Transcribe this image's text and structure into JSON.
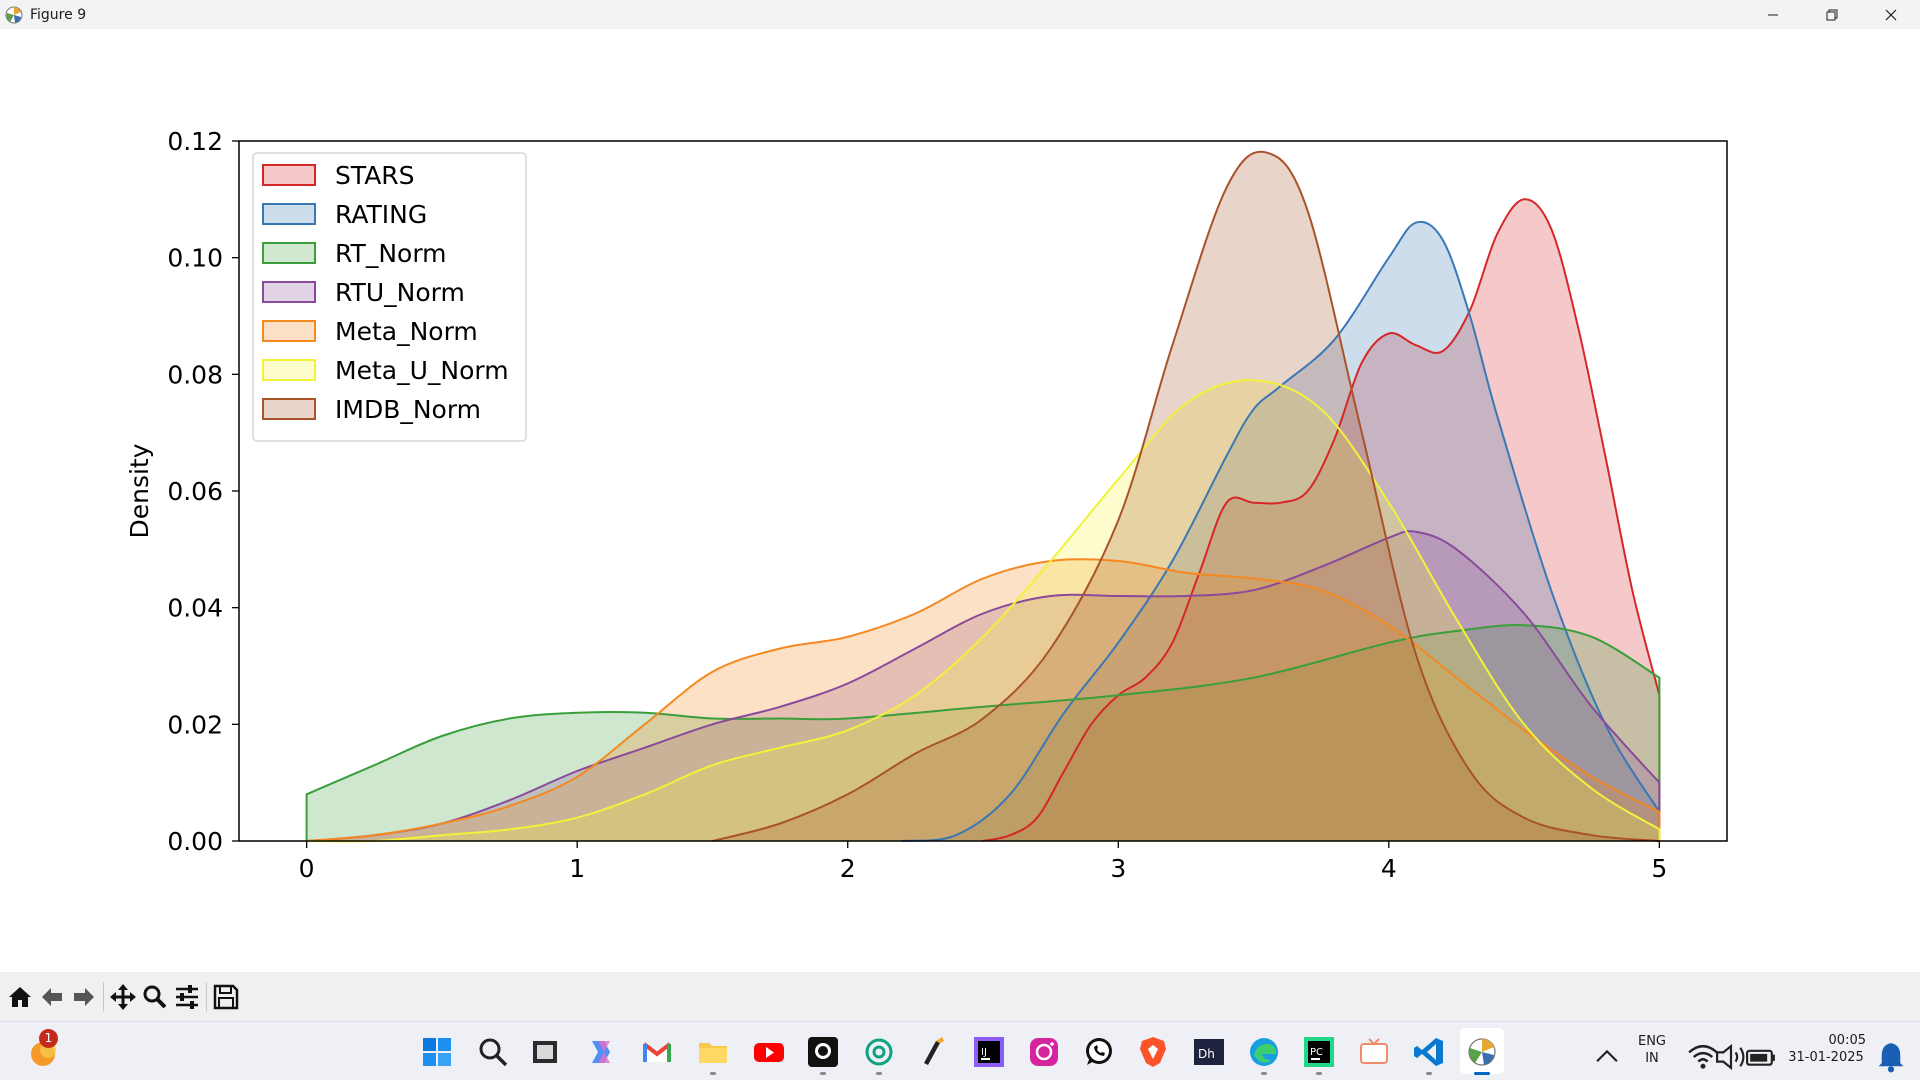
{
  "window": {
    "title": "Figure 9"
  },
  "chart_data": {
    "type": "area",
    "subtype": "kde",
    "title": "",
    "xlabel": "",
    "ylabel": "Density",
    "xlim": [
      -0.25,
      5.25
    ],
    "ylim": [
      0,
      0.12
    ],
    "xticks": [
      0,
      1,
      2,
      3,
      4,
      5
    ],
    "yticks": [
      0.0,
      0.02,
      0.04,
      0.06,
      0.08,
      0.1,
      0.12
    ],
    "xtick_labels": [
      "0",
      "1",
      "2",
      "3",
      "4",
      "5"
    ],
    "ytick_labels": [
      "0.00",
      "0.02",
      "0.04",
      "0.06",
      "0.08",
      "0.10",
      "0.12"
    ],
    "grid": false,
    "legend_position": "top-left",
    "series": [
      {
        "name": "STARS",
        "color": "#d62728",
        "fill": "#f4b6b8",
        "x": [
          2.5,
          2.6,
          2.7,
          2.8,
          2.9,
          3.0,
          3.1,
          3.2,
          3.3,
          3.4,
          3.5,
          3.6,
          3.7,
          3.8,
          3.9,
          4.0,
          4.1,
          4.2,
          4.3,
          4.4,
          4.5,
          4.6,
          4.7,
          4.8,
          4.9,
          5.0
        ],
        "y": [
          0.0,
          0.001,
          0.004,
          0.012,
          0.02,
          0.025,
          0.028,
          0.034,
          0.046,
          0.058,
          0.058,
          0.058,
          0.06,
          0.069,
          0.082,
          0.087,
          0.085,
          0.084,
          0.091,
          0.104,
          0.11,
          0.105,
          0.088,
          0.066,
          0.043,
          0.025
        ]
      },
      {
        "name": "RATING",
        "color": "#3a78b5",
        "fill": "#b3cfe8",
        "x": [
          2.2,
          2.4,
          2.6,
          2.8,
          3.0,
          3.2,
          3.4,
          3.5,
          3.6,
          3.8,
          4.0,
          4.1,
          4.2,
          4.3,
          4.4,
          4.6,
          4.8,
          5.0
        ],
        "y": [
          0.0,
          0.001,
          0.008,
          0.022,
          0.034,
          0.048,
          0.066,
          0.074,
          0.078,
          0.086,
          0.1,
          0.106,
          0.103,
          0.09,
          0.073,
          0.043,
          0.02,
          0.005
        ]
      },
      {
        "name": "RT_Norm",
        "color": "#3a9e3a",
        "fill": "#bfe3bf",
        "x": [
          0.0,
          0.25,
          0.5,
          0.75,
          1.0,
          1.25,
          1.5,
          1.75,
          2.0,
          2.5,
          3.0,
          3.5,
          4.0,
          4.25,
          4.5,
          4.75,
          5.0
        ],
        "y": [
          0.008,
          0.013,
          0.018,
          0.021,
          0.022,
          0.022,
          0.021,
          0.021,
          0.021,
          0.023,
          0.025,
          0.028,
          0.034,
          0.036,
          0.037,
          0.035,
          0.028
        ]
      },
      {
        "name": "RTU_Norm",
        "color": "#8a4a9a",
        "fill": "#d8c1df",
        "x": [
          0.0,
          0.25,
          0.5,
          0.75,
          1.0,
          1.25,
          1.5,
          1.75,
          2.0,
          2.25,
          2.5,
          2.75,
          3.0,
          3.25,
          3.5,
          3.75,
          4.0,
          4.1,
          4.25,
          4.5,
          4.75,
          5.0
        ],
        "y": [
          0.0,
          0.001,
          0.003,
          0.007,
          0.012,
          0.016,
          0.02,
          0.023,
          0.027,
          0.033,
          0.039,
          0.042,
          0.042,
          0.042,
          0.043,
          0.047,
          0.052,
          0.053,
          0.05,
          0.039,
          0.023,
          0.01
        ]
      },
      {
        "name": "Meta_Norm",
        "color": "#f5881f",
        "fill": "#fdd6b3",
        "x": [
          0.0,
          0.25,
          0.5,
          0.75,
          1.0,
          1.25,
          1.5,
          1.75,
          2.0,
          2.25,
          2.5,
          2.75,
          3.0,
          3.25,
          3.5,
          3.75,
          4.0,
          4.25,
          4.5,
          4.75,
          5.0
        ],
        "y": [
          0.0,
          0.001,
          0.003,
          0.006,
          0.011,
          0.02,
          0.029,
          0.033,
          0.035,
          0.039,
          0.045,
          0.048,
          0.048,
          0.046,
          0.045,
          0.043,
          0.037,
          0.028,
          0.019,
          0.011,
          0.005
        ]
      },
      {
        "name": "Meta_U_Norm",
        "color": "#f2f238",
        "fill": "#fcfcb8",
        "x": [
          0.0,
          0.25,
          0.5,
          0.75,
          1.0,
          1.25,
          1.5,
          1.75,
          2.0,
          2.25,
          2.5,
          2.75,
          3.0,
          3.25,
          3.5,
          3.75,
          4.0,
          4.25,
          4.5,
          4.75,
          5.0
        ],
        "y": [
          0.0,
          0.0,
          0.001,
          0.002,
          0.004,
          0.008,
          0.013,
          0.016,
          0.019,
          0.025,
          0.035,
          0.048,
          0.062,
          0.075,
          0.079,
          0.074,
          0.058,
          0.038,
          0.02,
          0.009,
          0.002
        ]
      },
      {
        "name": "IMDB_Norm",
        "color": "#a8532a",
        "fill": "#e0bfae",
        "x": [
          1.5,
          1.75,
          2.0,
          2.25,
          2.5,
          2.75,
          3.0,
          3.2,
          3.4,
          3.55,
          3.7,
          3.9,
          4.1,
          4.3,
          4.5,
          4.75,
          5.0
        ],
        "y": [
          0.0,
          0.003,
          0.008,
          0.015,
          0.021,
          0.033,
          0.055,
          0.085,
          0.112,
          0.118,
          0.108,
          0.07,
          0.032,
          0.012,
          0.004,
          0.001,
          0.0
        ]
      }
    ]
  },
  "toolbar": {
    "items": [
      {
        "name": "home-button",
        "icon": "home-icon"
      },
      {
        "name": "back-button",
        "icon": "arrow-left-icon"
      },
      {
        "name": "forward-button",
        "icon": "arrow-right-icon"
      },
      {
        "name": "pan-button",
        "icon": "move-icon"
      },
      {
        "name": "zoom-button",
        "icon": "magnifier-icon"
      },
      {
        "name": "configure-subplots-button",
        "icon": "sliders-icon"
      },
      {
        "name": "save-button",
        "icon": "floppy-disk-icon"
      }
    ]
  },
  "taskbar": {
    "notification_badge": "1",
    "tray": {
      "language": "ENG",
      "region": "IN",
      "time": "00:05",
      "date": "31-01-2025"
    }
  }
}
